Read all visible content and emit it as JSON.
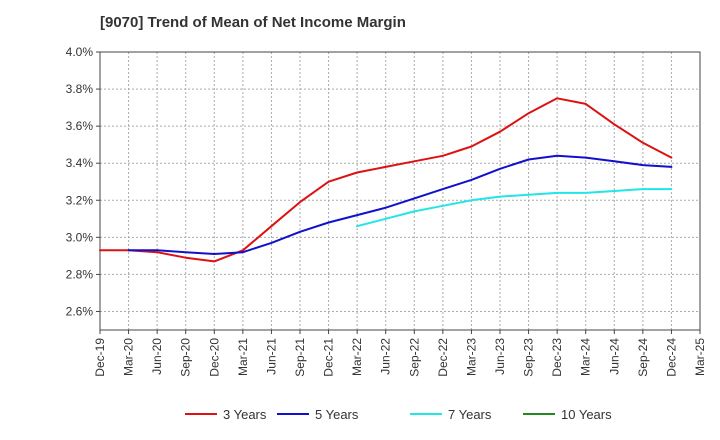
{
  "chart_data": {
    "type": "line",
    "title": "[9070]  Trend of Mean of Net Income Margin",
    "xlabel": "",
    "ylabel": "",
    "x": [
      "Dec-19",
      "Mar-20",
      "Jun-20",
      "Sep-20",
      "Dec-20",
      "Mar-21",
      "Jun-21",
      "Sep-21",
      "Dec-21",
      "Mar-22",
      "Jun-22",
      "Sep-22",
      "Dec-22",
      "Mar-23",
      "Jun-23",
      "Sep-23",
      "Dec-23",
      "Mar-24",
      "Jun-24",
      "Sep-24",
      "Dec-24",
      "Mar-25"
    ],
    "y_ticks": [
      "4.0%",
      "3.8%",
      "3.6%",
      "3.4%",
      "3.2%",
      "3.0%",
      "2.8%",
      "2.6%"
    ],
    "ylim": [
      2.5,
      4.0
    ],
    "grid": true,
    "legend_position": "bottom",
    "series": [
      {
        "name": "3 Years",
        "color": "#dd1111",
        "values": [
          2.93,
          2.93,
          2.92,
          2.89,
          2.87,
          2.93,
          3.06,
          3.19,
          3.3,
          3.35,
          3.38,
          3.41,
          3.44,
          3.49,
          3.57,
          3.67,
          3.75,
          3.72,
          3.61,
          3.51,
          3.43,
          null
        ]
      },
      {
        "name": "5 Years",
        "color": "#1111cc",
        "values": [
          null,
          2.93,
          2.93,
          2.92,
          2.91,
          2.92,
          2.97,
          3.03,
          3.08,
          3.12,
          3.16,
          3.21,
          3.26,
          3.31,
          3.37,
          3.42,
          3.44,
          3.43,
          3.41,
          3.39,
          3.38,
          null
        ]
      },
      {
        "name": "7 Years",
        "color": "#22e5e5",
        "values": [
          null,
          null,
          null,
          null,
          null,
          null,
          null,
          null,
          null,
          3.06,
          3.1,
          3.14,
          3.17,
          3.2,
          3.22,
          3.23,
          3.24,
          3.24,
          3.25,
          3.26,
          3.26,
          null
        ]
      },
      {
        "name": "10 Years",
        "color": "#228822",
        "values": [
          null,
          null,
          null,
          null,
          null,
          null,
          null,
          null,
          null,
          null,
          null,
          null,
          null,
          null,
          null,
          null,
          null,
          null,
          null,
          null,
          null,
          null
        ]
      }
    ]
  }
}
